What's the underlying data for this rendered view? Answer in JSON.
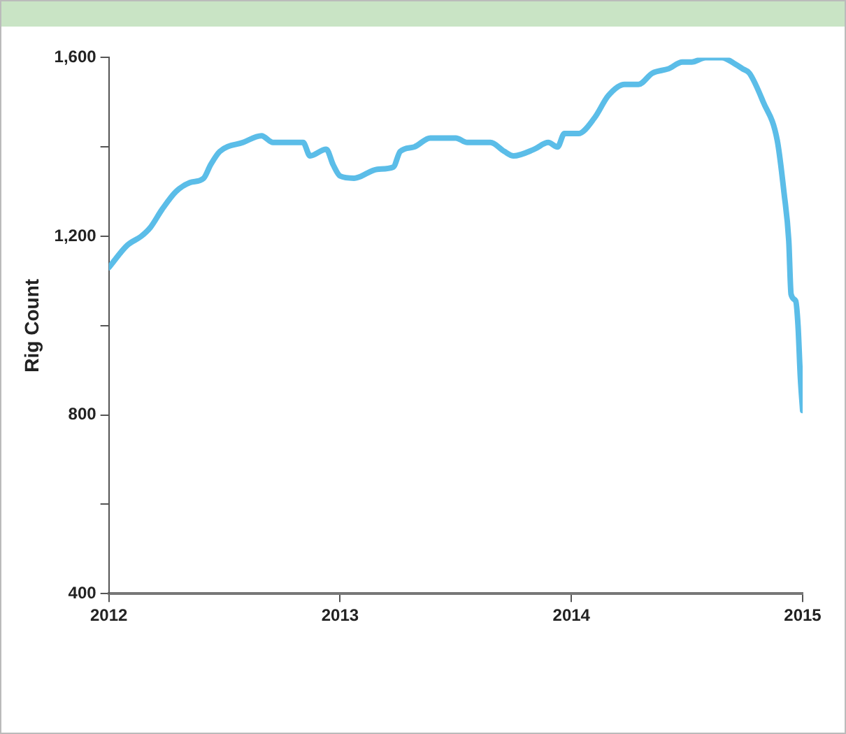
{
  "chart_data": {
    "type": "line",
    "ylabel": "Rig Count",
    "xlim": [
      2012,
      2015
    ],
    "xticks": [
      2012,
      2013,
      2014,
      2015
    ],
    "ylim": [
      400,
      1600
    ],
    "yticks": [
      {
        "value": 400,
        "label": "400"
      },
      {
        "value": 600,
        "label": null
      },
      {
        "value": 800,
        "label": "800"
      },
      {
        "value": 1000,
        "label": null
      },
      {
        "value": 1200,
        "label": "1,200"
      },
      {
        "value": 1400,
        "label": null
      },
      {
        "value": 1600,
        "label": "1,600"
      }
    ],
    "grid": false,
    "legend": false,
    "marker": "none",
    "line_style": "solid",
    "series": [
      {
        "color": "#5bbde8",
        "x": [
          2012.0,
          2012.08,
          2012.14,
          2012.18,
          2012.23,
          2012.29,
          2012.35,
          2012.41,
          2012.44,
          2012.48,
          2012.58,
          2012.66,
          2012.71,
          2012.77,
          2012.84,
          2012.87,
          2012.94,
          2012.97,
          2013.0,
          2013.06,
          2013.16,
          2013.23,
          2013.26,
          2013.32,
          2013.39,
          2013.45,
          2013.5,
          2013.55,
          2013.65,
          2013.71,
          2013.75,
          2013.84,
          2013.9,
          2013.94,
          2013.97,
          2014.03,
          2014.1,
          2014.16,
          2014.23,
          2014.29,
          2014.35,
          2014.42,
          2014.48,
          2014.52,
          2014.58,
          2014.65,
          2014.71,
          2014.74,
          2014.77,
          2014.83,
          2014.89,
          2014.92,
          2014.94,
          2014.95,
          2014.97,
          2014.98,
          2014.99,
          2015.0
        ],
        "values": [
          1130,
          1180,
          1200,
          1220,
          1260,
          1300,
          1320,
          1330,
          1360,
          1390,
          1410,
          1425,
          1410,
          1410,
          1410,
          1380,
          1395,
          1360,
          1335,
          1330,
          1350,
          1355,
          1390,
          1400,
          1420,
          1420,
          1420,
          1410,
          1410,
          1390,
          1380,
          1395,
          1410,
          1400,
          1430,
          1430,
          1465,
          1515,
          1540,
          1540,
          1565,
          1575,
          1590,
          1590,
          1600,
          1600,
          1585,
          1575,
          1565,
          1500,
          1415,
          1295,
          1190,
          1070,
          1055,
          1000,
          885,
          810
        ]
      }
    ]
  }
}
